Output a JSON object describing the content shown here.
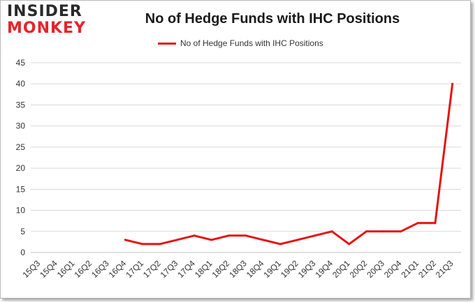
{
  "logo": {
    "line1": "INSIDER",
    "line2": "MONKEY"
  },
  "chart_data": {
    "type": "line",
    "title": "No of Hedge Funds with IHC Positions",
    "xlabel": "",
    "ylabel": "",
    "categories": [
      "15Q3",
      "15Q4",
      "16Q1",
      "16Q2",
      "16Q3",
      "16Q4",
      "17Q1",
      "17Q2",
      "17Q3",
      "17Q4",
      "18Q1",
      "18Q2",
      "18Q3",
      "18Q4",
      "19Q1",
      "19Q2",
      "19Q3",
      "19Q4",
      "20Q1",
      "20Q2",
      "20Q3",
      "20Q4",
      "21Q1",
      "21Q2",
      "21Q3"
    ],
    "series": [
      {
        "name": "No of Hedge Funds with IHC Positions",
        "color": "#e3150f",
        "values": [
          null,
          null,
          null,
          null,
          null,
          3,
          2,
          2,
          3,
          4,
          3,
          4,
          4,
          3,
          2,
          3,
          4,
          5,
          2,
          5,
          5,
          5,
          7,
          7,
          40
        ]
      }
    ],
    "ylim": [
      0,
      45
    ],
    "yticks": [
      0,
      5,
      10,
      15,
      20,
      25,
      30,
      35,
      40,
      45
    ],
    "grid": true,
    "legend": "top-center"
  }
}
